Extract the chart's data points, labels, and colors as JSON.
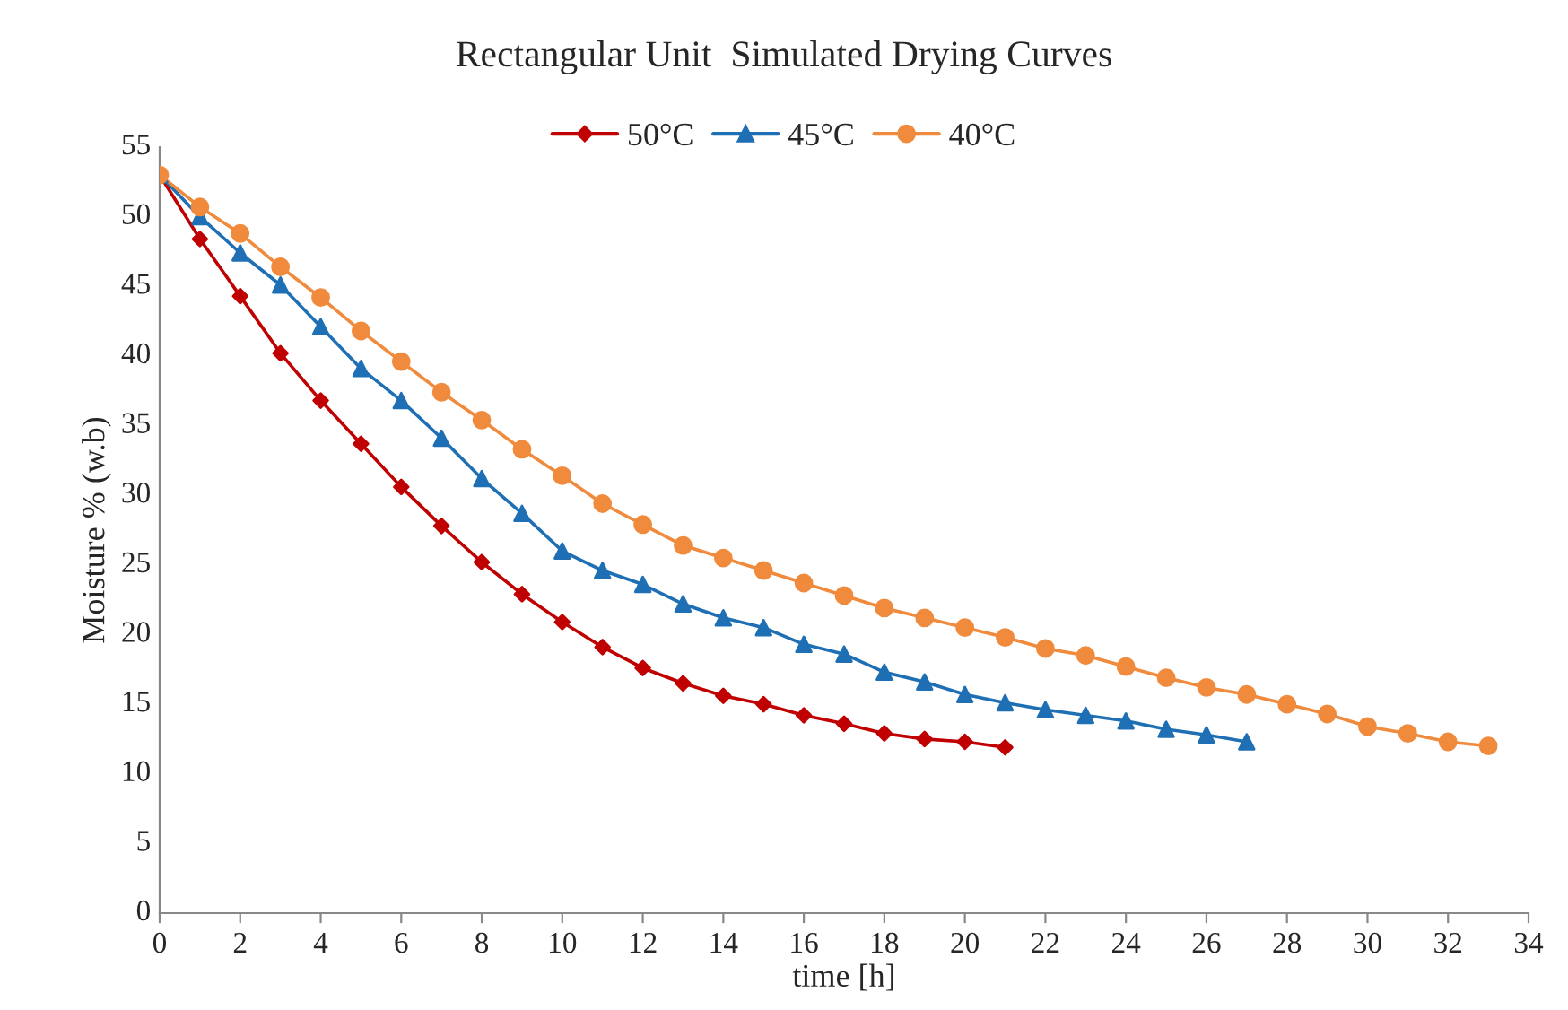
{
  "chart_data": {
    "type": "line",
    "title": "Rectangular Unit  Simulated Drying Curves",
    "xlabel": "time [h]",
    "ylabel": "Moisture % (w.b)",
    "xlim": [
      0,
      34
    ],
    "xticks": [
      0,
      2,
      4,
      6,
      8,
      10,
      12,
      14,
      16,
      18,
      20,
      22,
      24,
      26,
      28,
      30,
      32,
      34
    ],
    "ylim": [
      0,
      55
    ],
    "yticks": [
      0,
      5,
      10,
      15,
      20,
      25,
      30,
      35,
      40,
      45,
      50,
      55
    ],
    "grid": false,
    "legend": "top",
    "line_style": "solid",
    "series": [
      {
        "name": "50°C",
        "color": "#c00000",
        "marker": "diamond",
        "x": [
          0,
          1,
          2,
          3,
          4,
          5,
          6,
          7,
          8,
          9,
          10,
          11,
          12,
          13,
          14,
          15,
          16,
          17,
          18,
          19,
          20,
          21
        ],
        "values": [
          53,
          48.4,
          44.3,
          40.2,
          36.8,
          33.7,
          30.6,
          27.8,
          25.2,
          22.9,
          20.9,
          19.1,
          17.6,
          16.5,
          15.6,
          15.0,
          14.2,
          13.6,
          12.9,
          12.5,
          12.3,
          11.9
        ]
      },
      {
        "name": "45°C",
        "color": "#1f6fb5",
        "marker": "triangle",
        "x": [
          0,
          1,
          2,
          3,
          4,
          5,
          6,
          7,
          8,
          9,
          10,
          11,
          12,
          13,
          14,
          15,
          16,
          17,
          18,
          19,
          20,
          21,
          22,
          23,
          24,
          25,
          26,
          27
        ],
        "values": [
          53,
          50.0,
          47.4,
          45.1,
          42.1,
          39.1,
          36.8,
          34.1,
          31.2,
          28.7,
          26.0,
          24.6,
          23.6,
          22.2,
          21.2,
          20.5,
          19.3,
          18.6,
          17.3,
          16.6,
          15.7,
          15.1,
          14.6,
          14.2,
          13.8,
          13.2,
          12.8,
          12.3
        ]
      },
      {
        "name": "40°C",
        "color": "#f08a3c",
        "marker": "circle",
        "x": [
          0,
          1,
          2,
          3,
          4,
          5,
          6,
          7,
          8,
          9,
          10,
          11,
          12,
          13,
          14,
          15,
          16,
          17,
          18,
          19,
          20,
          21,
          22,
          23,
          24,
          25,
          26,
          27,
          28,
          29,
          30,
          31,
          32,
          33
        ],
        "values": [
          53,
          50.7,
          48.8,
          46.4,
          44.2,
          41.8,
          39.6,
          37.4,
          35.4,
          33.3,
          31.4,
          29.4,
          27.9,
          26.4,
          25.5,
          24.6,
          23.7,
          22.8,
          21.9,
          21.2,
          20.5,
          19.8,
          19.0,
          18.5,
          17.7,
          16.9,
          16.2,
          15.7,
          15.0,
          14.3,
          13.4,
          12.9,
          12.3,
          12.0
        ]
      }
    ]
  }
}
